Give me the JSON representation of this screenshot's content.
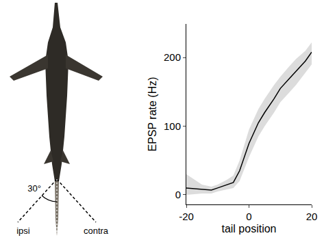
{
  "chart_data": {
    "type": "line",
    "xlabel": "tail position",
    "ylabel": "EPSP rate (Hz)",
    "x": [
      -20,
      -15,
      -12,
      -10,
      -7,
      -5,
      -3,
      0,
      3,
      5,
      8,
      10,
      13,
      15,
      18,
      20
    ],
    "series": [
      {
        "color": "#000000",
        "values": [
          10,
          8,
          7,
          10,
          15,
          18,
          35,
          75,
          105,
          120,
          140,
          155,
          170,
          180,
          195,
          208
        ],
        "lower": [
          0,
          2,
          2,
          5,
          8,
          10,
          20,
          55,
          85,
          100,
          120,
          135,
          150,
          160,
          178,
          190
        ],
        "upper": [
          30,
          15,
          12,
          15,
          22,
          28,
          50,
          95,
          125,
          140,
          160,
          172,
          188,
          198,
          210,
          222
        ]
      }
    ],
    "xlim": [
      -20,
      20
    ],
    "xticks": [
      -20,
      0,
      20
    ],
    "ylim": [
      -14,
      249
    ],
    "yticks": [
      0,
      100,
      200
    ],
    "grid": false
  },
  "diagram": {
    "angle_label": "30°",
    "left_label": "ipsi",
    "right_label": "contra"
  }
}
